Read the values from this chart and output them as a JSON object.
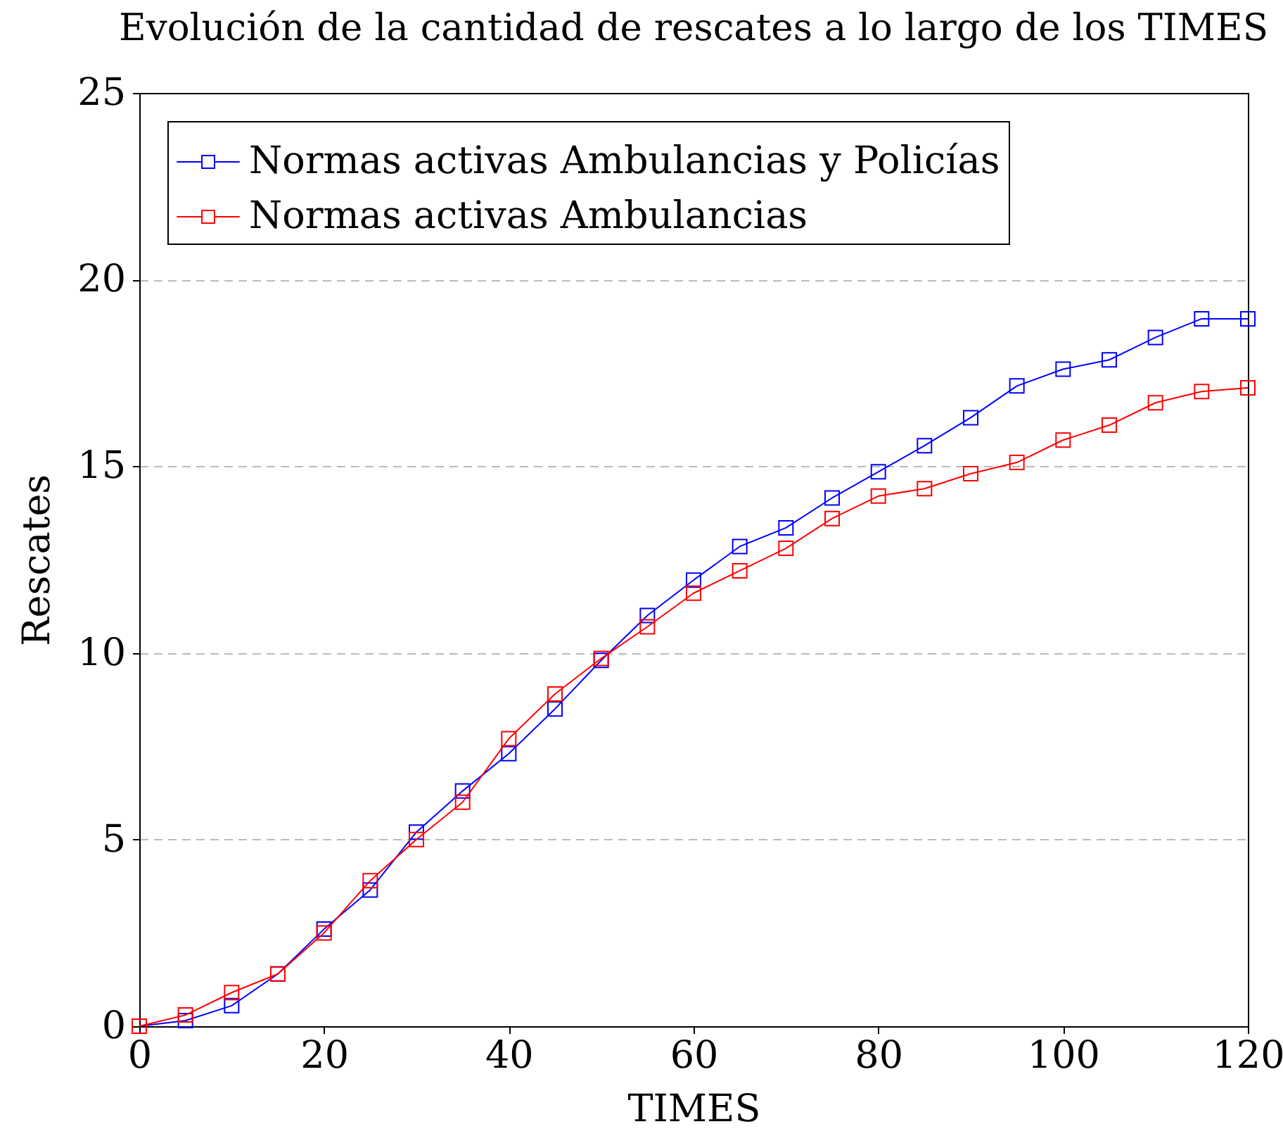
{
  "chart_data": {
    "type": "line",
    "title": "Evolución de la cantidad de rescates a lo largo de los TIMES",
    "xlabel": "TIMES",
    "ylabel": "Rescates",
    "x": [
      0,
      5,
      10,
      15,
      20,
      25,
      30,
      35,
      40,
      45,
      50,
      55,
      60,
      65,
      70,
      75,
      80,
      85,
      90,
      95,
      100,
      105,
      110,
      115,
      120
    ],
    "series": [
      {
        "name": "Normas activas Ambulancias y Policías",
        "color": "#0000ff",
        "values": [
          0,
          0.15,
          0.55,
          1.4,
          2.6,
          3.65,
          5.2,
          6.3,
          7.3,
          8.5,
          9.8,
          11.0,
          11.95,
          12.85,
          13.35,
          14.15,
          14.85,
          15.55,
          16.3,
          17.15,
          17.6,
          17.85,
          18.45,
          18.95,
          18.95
        ]
      },
      {
        "name": "Normas activas Ambulancias",
        "color": "#ff0000",
        "values": [
          0,
          0.3,
          0.9,
          1.4,
          2.5,
          3.9,
          5.0,
          6.0,
          7.7,
          8.9,
          9.85,
          10.7,
          11.6,
          12.2,
          12.8,
          13.6,
          14.2,
          14.4,
          14.8,
          15.1,
          15.7,
          16.1,
          16.7,
          17.0,
          17.1
        ]
      }
    ],
    "xlim": [
      0,
      120
    ],
    "ylim": [
      0,
      25
    ],
    "xticks": [
      0,
      20,
      40,
      60,
      80,
      100,
      120
    ],
    "yticks": [
      0,
      5,
      10,
      15,
      20,
      25
    ],
    "grid": "y",
    "legend": "top left",
    "marker": "square",
    "line_style": "solid"
  }
}
